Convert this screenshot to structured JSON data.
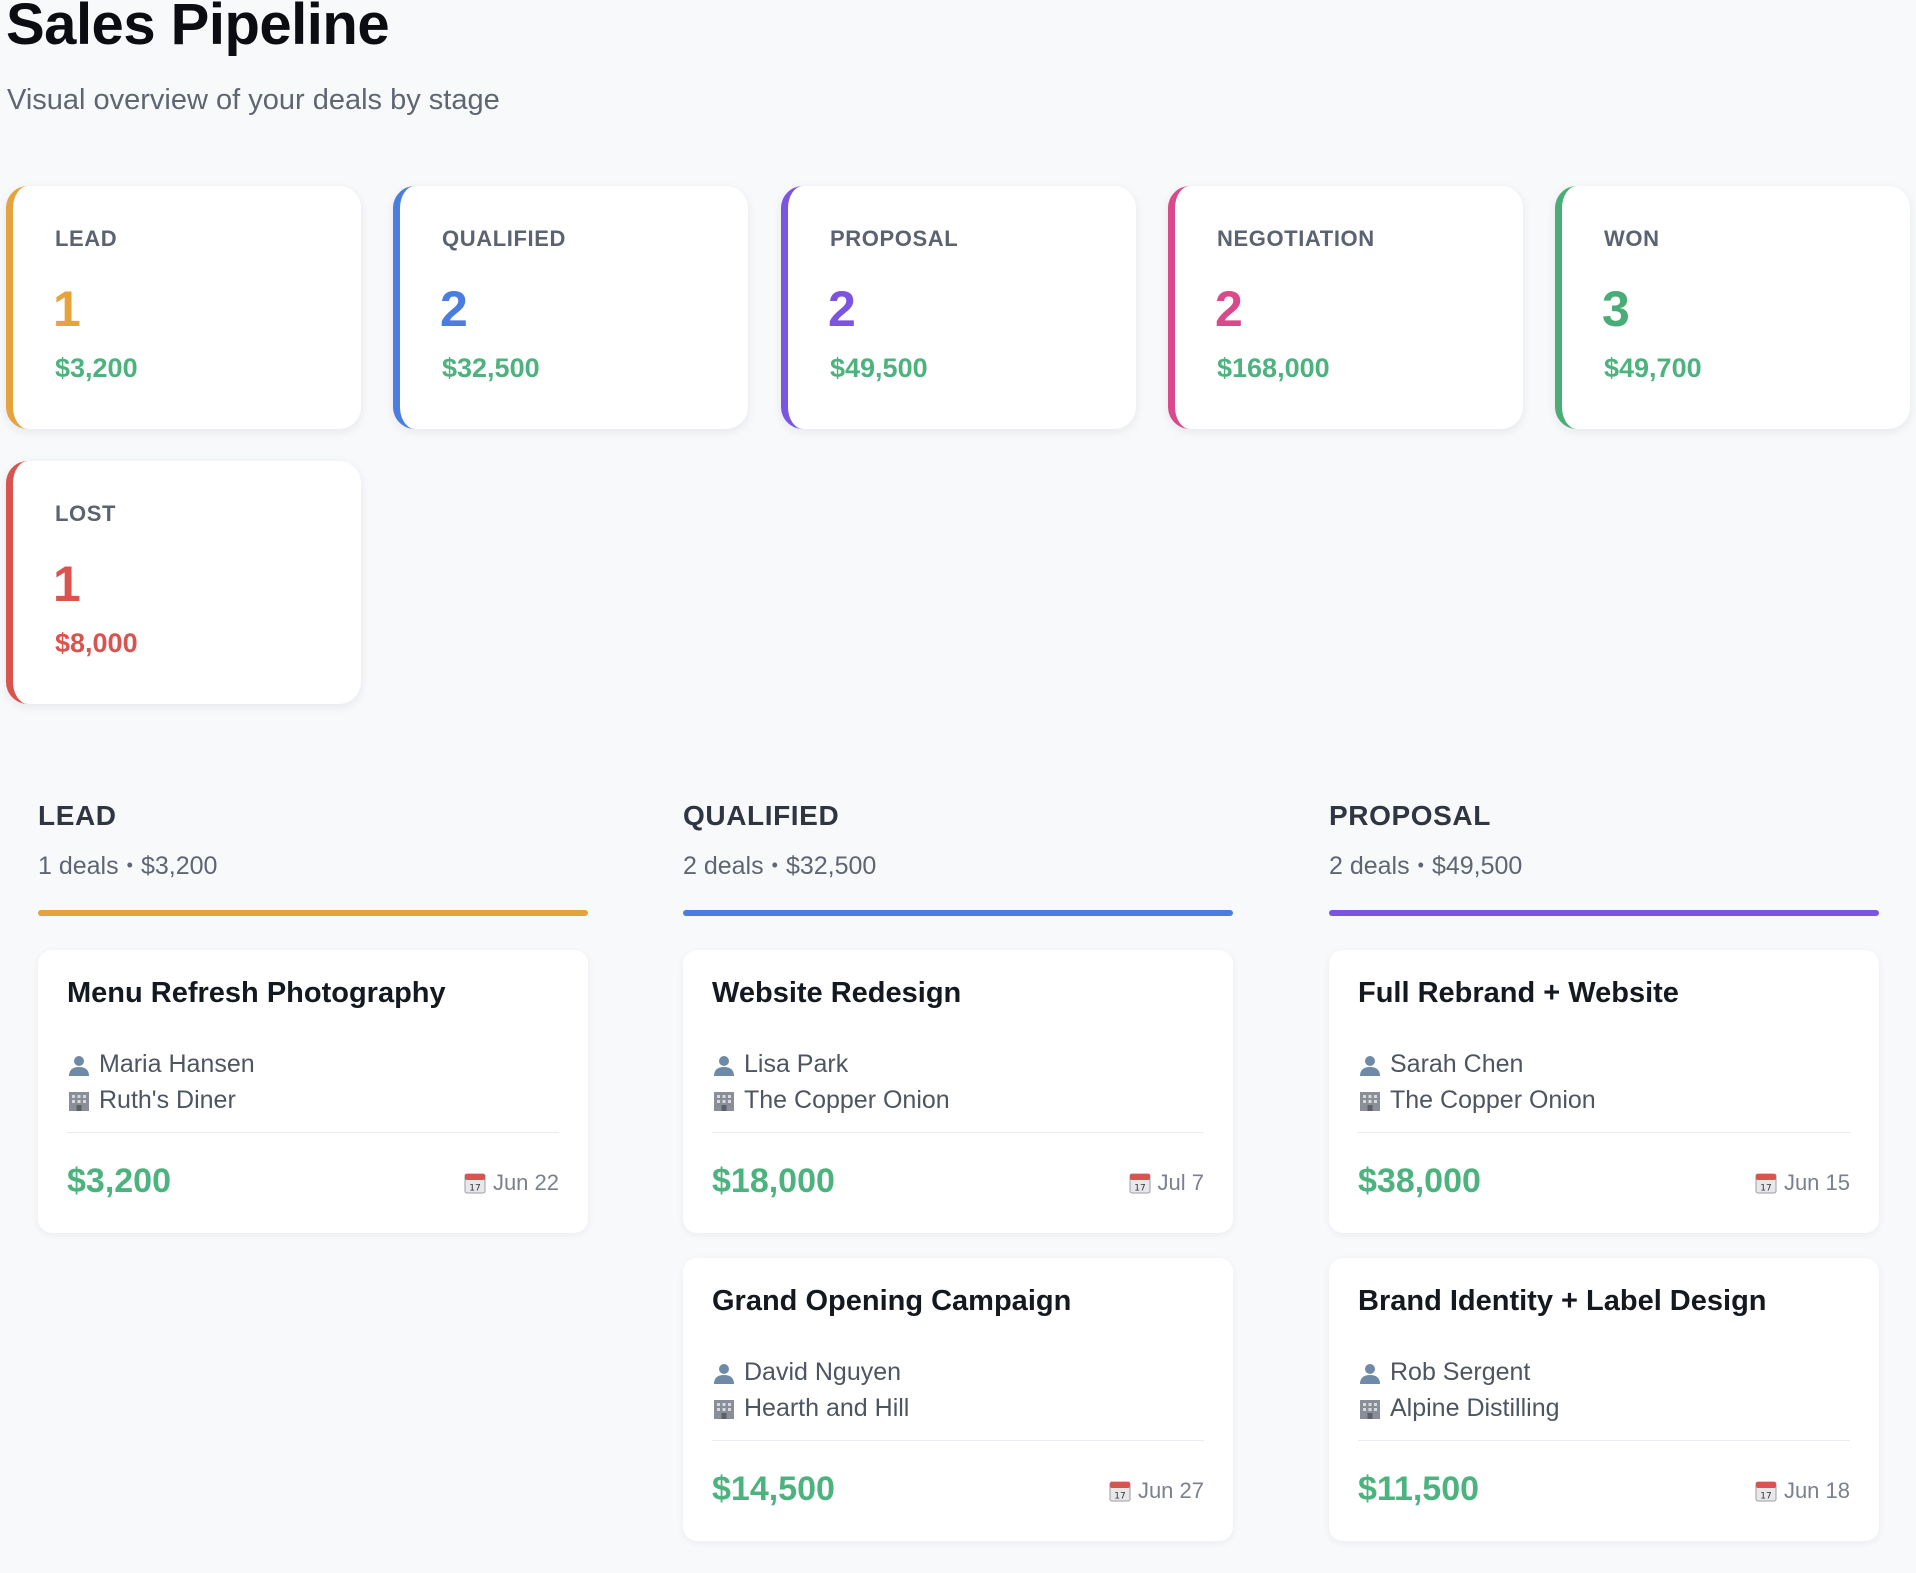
{
  "header": {
    "title": "Sales Pipeline",
    "subtitle": "Visual overview of your deals by stage"
  },
  "summary": [
    {
      "label": "LEAD",
      "count": "1",
      "value": "$3,200",
      "accent": "#e6a23c",
      "money": "#4db37e"
    },
    {
      "label": "QUALIFIED",
      "count": "2",
      "value": "$32,500",
      "accent": "#4a7de0",
      "money": "#4db37e"
    },
    {
      "label": "PROPOSAL",
      "count": "2",
      "value": "$49,500",
      "accent": "#7b55e0",
      "money": "#4db37e"
    },
    {
      "label": "NEGOTIATION",
      "count": "2",
      "value": "$168,000",
      "accent": "#d94a8c",
      "money": "#4db37e"
    },
    {
      "label": "WON",
      "count": "3",
      "value": "$49,700",
      "accent": "#4aad78",
      "money": "#4db37e"
    },
    {
      "label": "LOST",
      "count": "1",
      "value": "$8,000",
      "accent": "#d9534f",
      "money": "#d9534f"
    }
  ],
  "columns": [
    {
      "title": "LEAD",
      "deals_count": "1 deals",
      "total": "$3,200",
      "accent": "#e6a23c",
      "deals": [
        {
          "title": "Menu Refresh Photography",
          "contact": "Maria Hansen",
          "company": "Ruth's Diner",
          "amount": "$3,200",
          "date": "Jun 22"
        }
      ]
    },
    {
      "title": "QUALIFIED",
      "deals_count": "2 deals",
      "total": "$32,500",
      "accent": "#4a7de0",
      "deals": [
        {
          "title": "Website Redesign",
          "contact": "Lisa Park",
          "company": "The Copper Onion",
          "amount": "$18,000",
          "date": "Jul 7"
        },
        {
          "title": "Grand Opening Campaign",
          "contact": "David Nguyen",
          "company": "Hearth and Hill",
          "amount": "$14,500",
          "date": "Jun 27"
        }
      ]
    },
    {
      "title": "PROPOSAL",
      "deals_count": "2 deals",
      "total": "$49,500",
      "accent": "#7b55e0",
      "deals": [
        {
          "title": "Full Rebrand + Website",
          "contact": "Sarah Chen",
          "company": "The Copper Onion",
          "amount": "$38,000",
          "date": "Jun 15"
        },
        {
          "title": "Brand Identity + Label Design",
          "contact": "Rob Sergent",
          "company": "Alpine Distilling",
          "amount": "$11,500",
          "date": "Jun 18"
        }
      ]
    }
  ],
  "icons": {
    "contact": "person-icon",
    "company": "building-icon",
    "date": "calendar-icon",
    "separator": "•"
  }
}
